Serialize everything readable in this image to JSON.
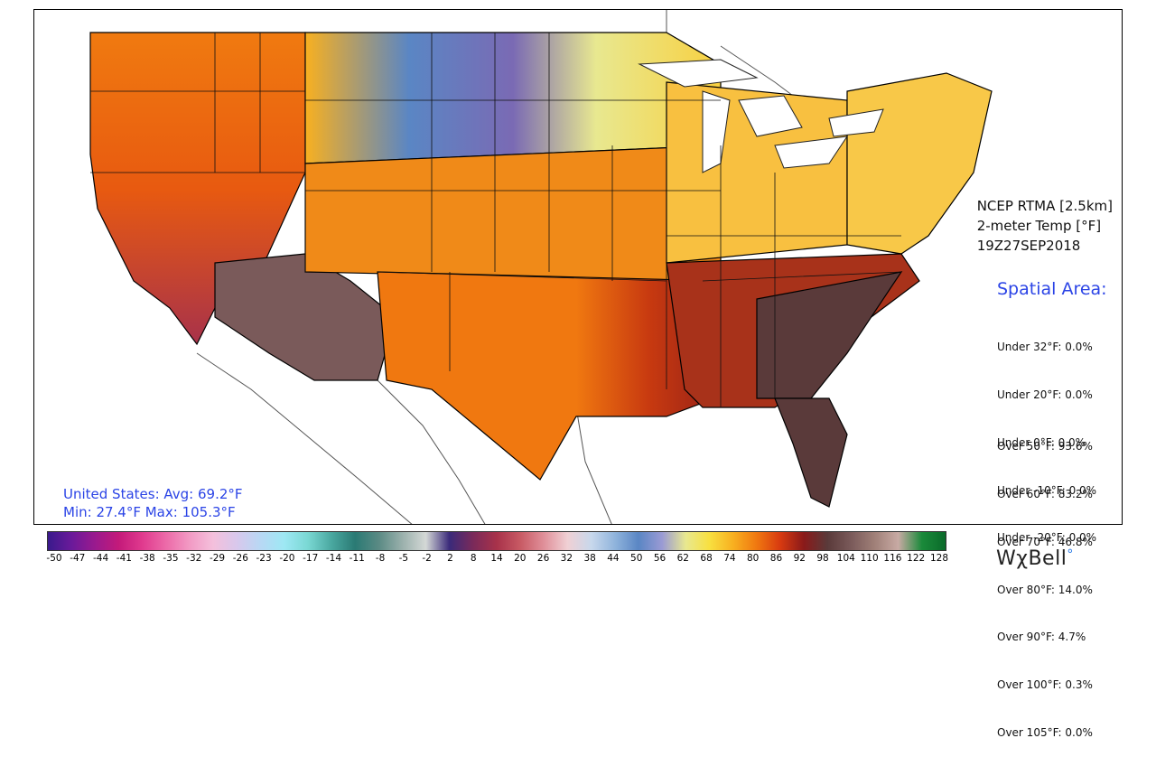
{
  "product": {
    "line1": "NCEP RTMA [2.5km]",
    "line2": "2-meter Temp [°F]",
    "line3": "19Z27SEP2018"
  },
  "spatial_area": {
    "title": "Spatial Area:",
    "under": [
      "Under 32°F: 0.0%",
      "Under 20°F: 0.0%",
      "Under 0°F: 0.0%",
      "Under -10°F: 0.0%",
      "Under -20°F: 0.0%"
    ],
    "over": [
      "Over 50°F: 93.6%",
      "Over 60°F: 83.2%",
      "Over 70°F: 46.8%",
      "Over 80°F: 14.0%",
      "Over 90°F: 4.7%",
      "Over 100°F: 0.3%",
      "Over 105°F: 0.0%"
    ]
  },
  "stats": {
    "line1": "United States: Avg:  69.2°F",
    "line2": "Min:  27.4°F Max: 105.3°F"
  },
  "colorbar": {
    "ticks": [
      "-50",
      "-47",
      "-44",
      "-41",
      "-38",
      "-35",
      "-32",
      "-29",
      "-26",
      "-23",
      "-20",
      "-17",
      "-14",
      "-11",
      "-8",
      "-5",
      "-2",
      "2",
      "8",
      "14",
      "20",
      "26",
      "32",
      "38",
      "44",
      "50",
      "56",
      "62",
      "68",
      "74",
      "80",
      "86",
      "92",
      "98",
      "104",
      "110",
      "116",
      "122",
      "128"
    ],
    "colors": [
      "#3a1a8c",
      "#6a1a9a",
      "#9a1a8e",
      "#c41a7a",
      "#e03a8e",
      "#ec6aa8",
      "#f29ac4",
      "#f4c0dc",
      "#d8c8ec",
      "#b8d8f4",
      "#9ee8f4",
      "#7ad8d4",
      "#4aa8a0",
      "#2a7a74",
      "#5a8a84",
      "#9ab0ac",
      "#d4d8d6",
      "#3a2a7a",
      "#7a2a5a",
      "#a8324a",
      "#c85a64",
      "#e0909a",
      "#f0d0d4",
      "#c8d8ec",
      "#90b4dc",
      "#5a86c4",
      "#9a9ad4",
      "#e8e890",
      "#f8e040",
      "#f8b020",
      "#f07810",
      "#d83a10",
      "#8a1a1a",
      "#5a3a3a",
      "#7a5a5a",
      "#a08078",
      "#c8aaa4",
      "#1a8a3a",
      "#0a6a2a"
    ]
  },
  "logo": {
    "text": "WχBell",
    "dot": "°"
  },
  "map": {
    "regions": [
      {
        "name": "pacific-northwest",
        "color": "#f07a10"
      },
      {
        "name": "northern-plains",
        "color": "#5a86c4"
      },
      {
        "name": "great-lakes",
        "color": "#f8d040"
      },
      {
        "name": "southwest-desert",
        "color": "#7a5a5a"
      },
      {
        "name": "southern-plains",
        "color": "#f07810"
      },
      {
        "name": "southeast",
        "color": "#8a1a1a"
      },
      {
        "name": "florida",
        "color": "#5a3a3a"
      },
      {
        "name": "northeast",
        "color": "#f8c040"
      }
    ],
    "water": "#ffffff"
  }
}
